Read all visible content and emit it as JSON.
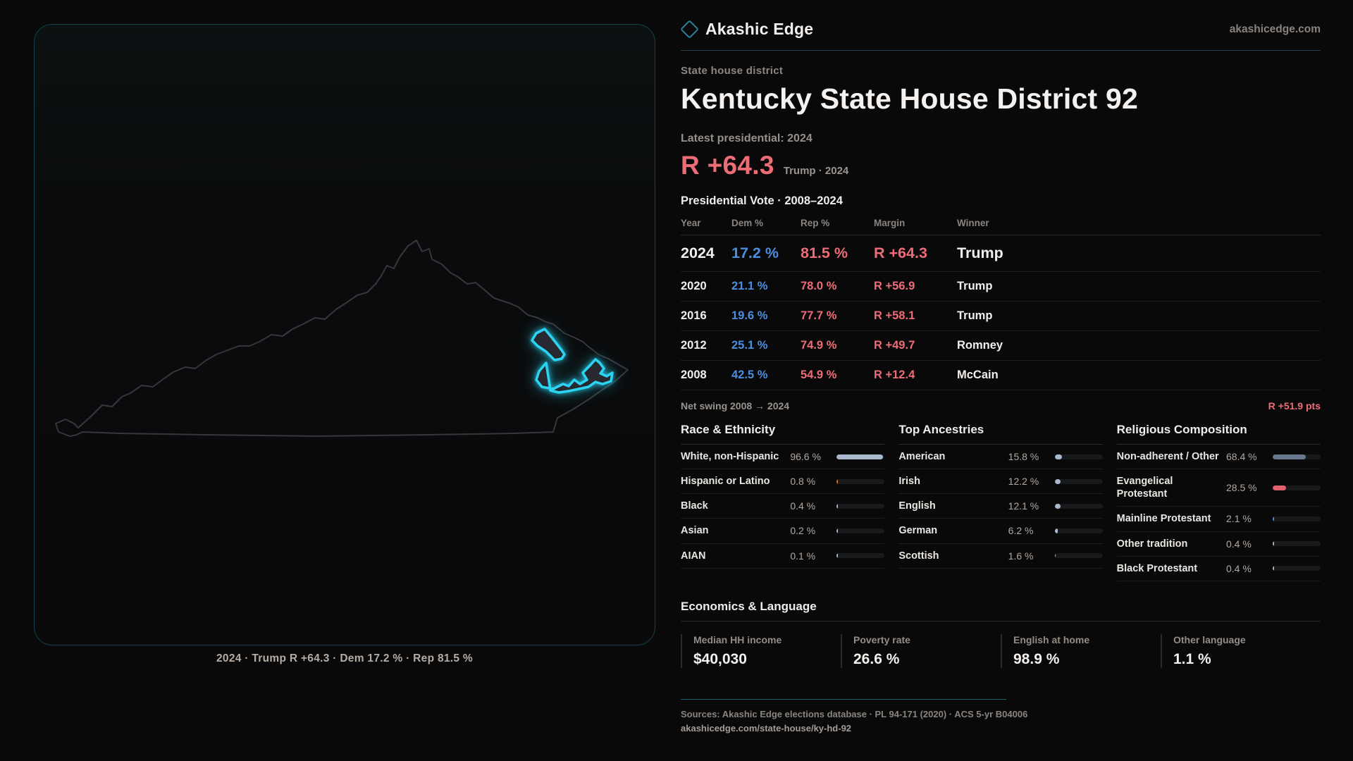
{
  "brand": {
    "name": "Akashic Edge",
    "domain": "akashicedge.com"
  },
  "header": {
    "kicker": "State house district",
    "title": "Kentucky State House District 92",
    "latest_label": "Latest presidential: 2024",
    "margin": "R +64.3",
    "margin_sub": "Trump · 2024"
  },
  "map": {
    "caption": "2024 · Trump R +64.3 · Dem 17.2 % · Rep 81.5 %",
    "district_color": "#2bd4f2",
    "outline_color": "#3c3c40"
  },
  "vote_table": {
    "title": "Presidential Vote · 2008–2024",
    "columns": [
      "Year",
      "Dem %",
      "Rep %",
      "Margin",
      "Winner"
    ],
    "rows": [
      {
        "year": "2024",
        "dem": "17.2 %",
        "rep": "81.5 %",
        "margin": "R +64.3",
        "winner": "Trump",
        "latest": true
      },
      {
        "year": "2020",
        "dem": "21.1 %",
        "rep": "78.0 %",
        "margin": "R +56.9",
        "winner": "Trump"
      },
      {
        "year": "2016",
        "dem": "19.6 %",
        "rep": "77.7 %",
        "margin": "R +58.1",
        "winner": "Trump"
      },
      {
        "year": "2012",
        "dem": "25.1 %",
        "rep": "74.9 %",
        "margin": "R +49.7",
        "winner": "Romney"
      },
      {
        "year": "2008",
        "dem": "42.5 %",
        "rep": "54.9 %",
        "margin": "R +12.4",
        "winner": "McCain"
      }
    ]
  },
  "net_swing": {
    "label": "Net swing 2008 → 2024",
    "value": "R +51.9 pts"
  },
  "demographics": {
    "race": {
      "title": "Race & Ethnicity",
      "rows": [
        {
          "label": "White, non-Hispanic",
          "value": "96.6 %",
          "pct": 96.6,
          "fill": "#a9b8cc"
        },
        {
          "label": "Hispanic or Latino",
          "value": "0.8 %",
          "pct": 0.8,
          "fill": "#c9772e"
        },
        {
          "label": "Black",
          "value": "0.4 %",
          "pct": 0.4,
          "fill": "#a9b8cc"
        },
        {
          "label": "Asian",
          "value": "0.2 %",
          "pct": 0.2,
          "fill": "#a9b8cc"
        },
        {
          "label": "AIAN",
          "value": "0.1 %",
          "pct": 0.1,
          "fill": "#a9b8cc"
        }
      ]
    },
    "ancestries": {
      "title": "Top Ancestries",
      "rows": [
        {
          "label": "American",
          "value": "15.8 %",
          "pct": 15.8,
          "fill": "#a9b8cc"
        },
        {
          "label": "Irish",
          "value": "12.2 %",
          "pct": 12.2,
          "fill": "#a9b8cc"
        },
        {
          "label": "English",
          "value": "12.1 %",
          "pct": 12.1,
          "fill": "#a9b8cc"
        },
        {
          "label": "German",
          "value": "6.2 %",
          "pct": 6.2,
          "fill": "#a9b8cc"
        },
        {
          "label": "Scottish",
          "value": "1.6 %",
          "pct": 1.6,
          "fill": "#a9b8cc"
        }
      ]
    },
    "religion": {
      "title": "Religious Composition",
      "rows": [
        {
          "label": "Non-adherent / Other",
          "value": "68.4 %",
          "pct": 68.4,
          "fill": "#68798f"
        },
        {
          "label": "Evangelical Protestant",
          "value": "28.5 %",
          "pct": 28.5,
          "fill": "#e0606d"
        },
        {
          "label": "Mainline Protestant",
          "value": "2.1 %",
          "pct": 2.1,
          "fill": "#4a8ee0"
        },
        {
          "label": "Other tradition",
          "value": "0.4 %",
          "pct": 0.4,
          "fill": "#a9b8cc"
        },
        {
          "label": "Black Protestant",
          "value": "0.4 %",
          "pct": 0.4,
          "fill": "#a9b8cc"
        }
      ]
    }
  },
  "economics": {
    "title": "Economics & Language",
    "stats": [
      {
        "label": "Median HH income",
        "value": "$40,030"
      },
      {
        "label": "Poverty rate",
        "value": "26.6 %"
      },
      {
        "label": "English at home",
        "value": "98.9 %"
      },
      {
        "label": "Other language",
        "value": "1.1 %"
      }
    ]
  },
  "footer": {
    "sources": "Sources: Akashic Edge elections database · PL 94-171 (2020) · ACS 5-yr B04006",
    "permalink": "akashicedge.com/state-house/ky-hd-92"
  }
}
